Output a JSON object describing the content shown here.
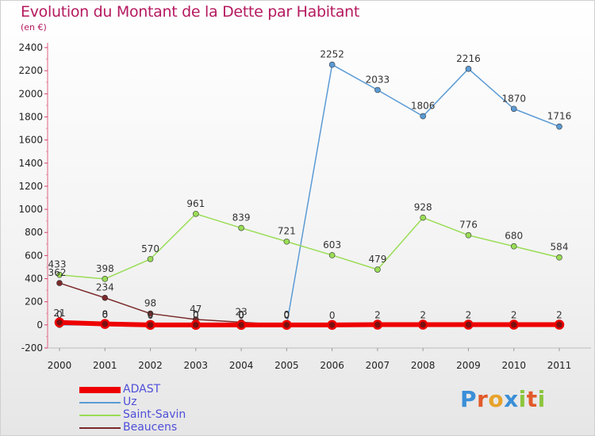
{
  "title": "Evolution du Montant de la Dette par Habitant",
  "unit": "(en €)",
  "chart_data": {
    "type": "line",
    "x": [
      "2000",
      "2001",
      "2002",
      "2003",
      "2004",
      "2005",
      "2006",
      "2007",
      "2008",
      "2009",
      "2010",
      "2011"
    ],
    "ylim": [
      -200,
      2400
    ],
    "yticks": [
      -200,
      0,
      200,
      400,
      600,
      800,
      1000,
      1200,
      1400,
      1600,
      1800,
      2000,
      2200,
      2400
    ],
    "grid": false,
    "legend_position": "bottom-left",
    "series": [
      {
        "name": "ADAST",
        "color": "#ee0000",
        "values": [
          21,
          8,
          0,
          0,
          0,
          0,
          0,
          2,
          2,
          2,
          2,
          2
        ]
      },
      {
        "name": "Uz",
        "color": "#5b9bd5",
        "values": [
          0,
          0,
          0,
          0,
          0,
          0,
          2252,
          2033,
          1806,
          2216,
          1870,
          1716
        ]
      },
      {
        "name": "Saint-Savin",
        "color": "#99dd55",
        "values": [
          433,
          398,
          570,
          961,
          839,
          721,
          603,
          479,
          928,
          776,
          680,
          584
        ]
      },
      {
        "name": "Beaucens",
        "color": "#7a2a2a",
        "values": [
          362,
          234,
          98,
          47,
          23,
          0,
          null,
          null,
          null,
          null,
          null,
          null
        ]
      }
    ]
  },
  "logo": {
    "text": "Proxiti",
    "letters": [
      {
        "ch": "P",
        "color": "#3a8fd8"
      },
      {
        "ch": "r",
        "color": "#e25a2a"
      },
      {
        "ch": "o",
        "color": "#e7a22a"
      },
      {
        "ch": "x",
        "color": "#3a8fd8"
      },
      {
        "ch": "i",
        "color": "#8cc63e"
      },
      {
        "ch": "t",
        "color": "#e25a2a"
      },
      {
        "ch": "i",
        "color": "#8cc63e"
      }
    ]
  }
}
